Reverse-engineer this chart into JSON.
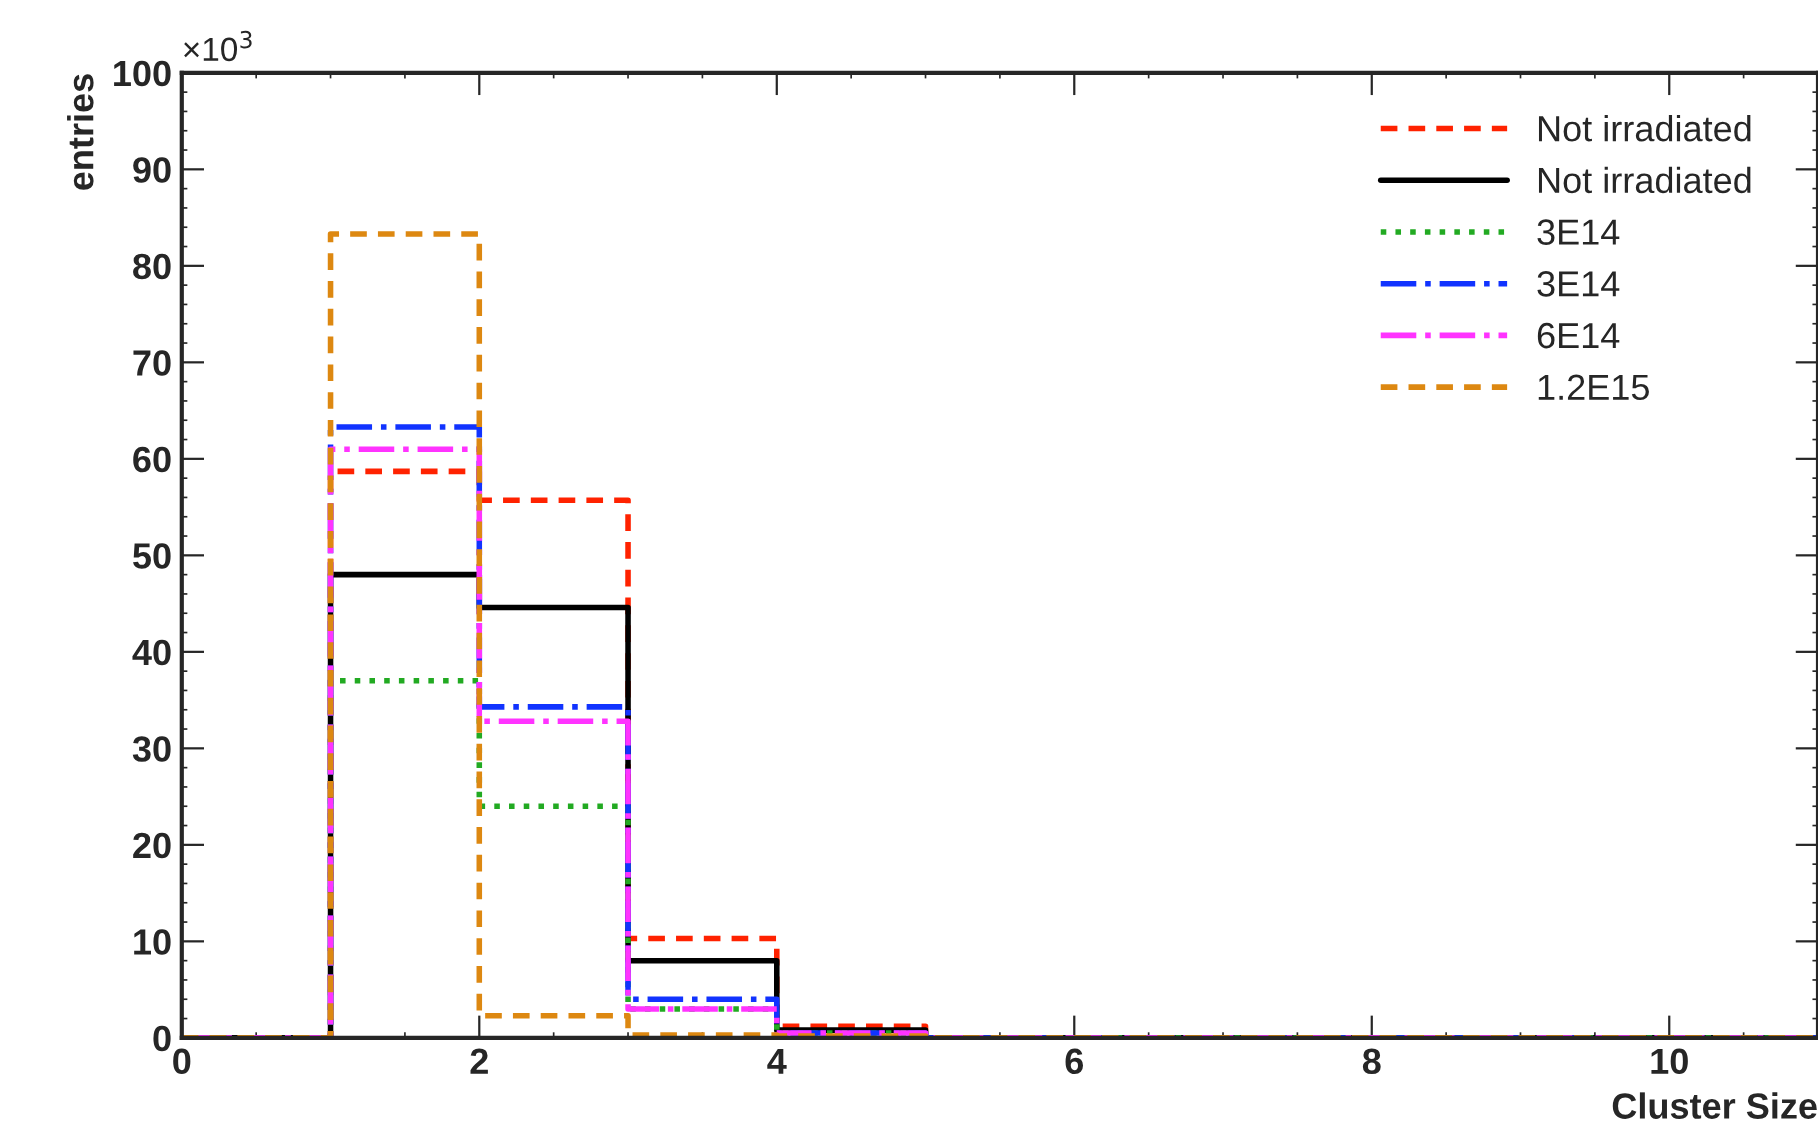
{
  "chart_data": {
    "type": "histogram",
    "xlabel": "Cluster Size",
    "ylabel": "entries",
    "annotations": [
      "×10$^{3}$"
    ],
    "bins": [
      0,
      1,
      2,
      3,
      4,
      5,
      6,
      7,
      8,
      9,
      10,
      11
    ],
    "series": [
      {
        "name": "Not irradiated",
        "color": "#ff2200",
        "line_style": "dashed",
        "values": [
          0,
          58.7,
          55.7,
          10.3,
          1.2,
          0,
          0,
          0,
          0,
          0,
          0
        ]
      },
      {
        "name": "Not irradiated",
        "color": "#000000",
        "line_style": "solid",
        "values": [
          0,
          48,
          44.6,
          8,
          0.8,
          0,
          0,
          0,
          0,
          0,
          0
        ]
      },
      {
        "name": "3E14",
        "color": "#22aa22",
        "line_style": "dotted",
        "values": [
          0,
          37,
          24,
          3,
          0.5,
          0,
          0,
          0,
          0,
          0,
          0
        ]
      },
      {
        "name": "3E14",
        "color": "#1133ff",
        "line_style": "dashdot",
        "values": [
          0,
          63.3,
          34.3,
          4,
          0.5,
          0,
          0,
          0,
          0,
          0,
          0
        ]
      },
      {
        "name": "6E14",
        "color": "#ff33ff",
        "line_style": "dashdot",
        "values": [
          0,
          61,
          32.8,
          3,
          0.5,
          0,
          0,
          0,
          0,
          0,
          0
        ]
      },
      {
        "name": "1.2E15",
        "color": "#dd8811",
        "line_style": "dashed",
        "values": [
          0,
          83.3,
          2.3,
          0.3,
          0.2,
          0,
          0,
          0,
          0,
          0,
          0
        ]
      }
    ],
    "xlim": [
      0,
      11
    ],
    "ylim": [
      0,
      100
    ],
    "xticks": [
      0,
      2,
      4,
      6,
      8,
      10
    ],
    "yticks": [
      0,
      10,
      20,
      30,
      40,
      50,
      60,
      70,
      80,
      90,
      100
    ],
    "grid": false,
    "legend": "top right"
  }
}
